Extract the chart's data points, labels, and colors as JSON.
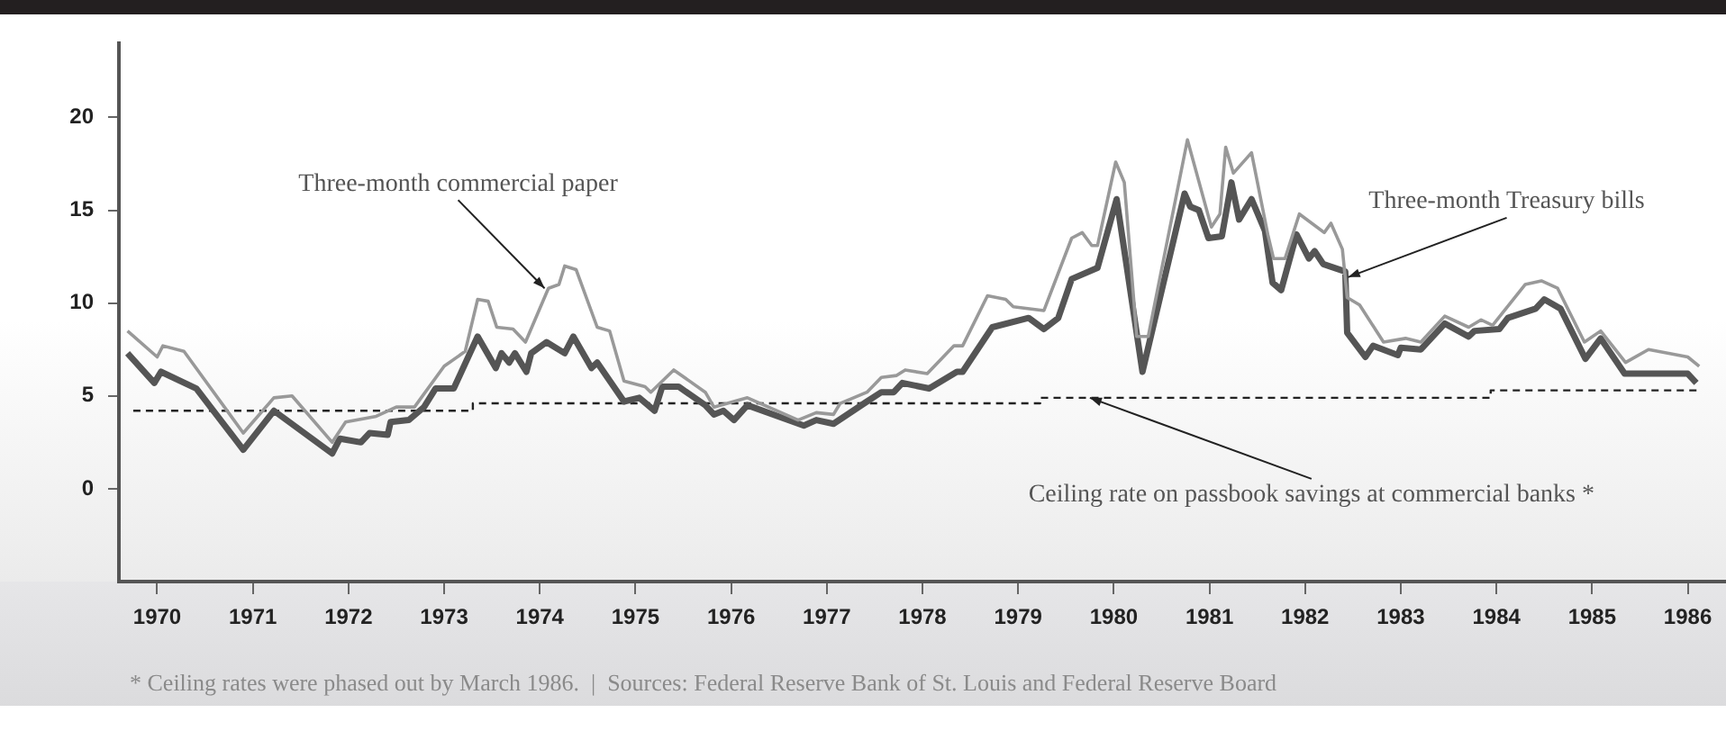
{
  "chart_data": {
    "type": "line",
    "xlim": [
      1969.6,
      1986.4
    ],
    "xticks": [
      1970,
      1971,
      1972,
      1973,
      1974,
      1975,
      1976,
      1977,
      1978,
      1979,
      1980,
      1981,
      1982,
      1983,
      1984,
      1985,
      1986
    ],
    "ylim": [
      -5,
      24
    ],
    "yticks": [
      0,
      5,
      10,
      15,
      20
    ],
    "grid": false,
    "legend": false,
    "marker": "none",
    "series": [
      {
        "color": "#999999",
        "line_style": "solid",
        "x": [
          1969.69,
          1970.0,
          1970.06,
          1970.28,
          1970.9,
          1971.22,
          1971.41,
          1971.83,
          1971.97,
          1972.29,
          1972.5,
          1972.69,
          1973.0,
          1973.22,
          1973.35,
          1973.46,
          1973.55,
          1973.72,
          1973.85,
          1974.09,
          1974.2,
          1974.26,
          1974.38,
          1974.6,
          1974.73,
          1974.88,
          1975.1,
          1975.16,
          1975.4,
          1975.73,
          1975.82,
          1976.17,
          1976.7,
          1976.89,
          1977.07,
          1977.14,
          1977.42,
          1977.57,
          1977.73,
          1977.82,
          1978.05,
          1978.33,
          1978.42,
          1978.68,
          1978.87,
          1978.95,
          1979.27,
          1979.56,
          1979.67,
          1979.77,
          1979.83,
          1980.02,
          1980.11,
          1980.24,
          1980.36,
          1980.77,
          1981.02,
          1981.11,
          1981.17,
          1981.25,
          1981.44,
          1981.61,
          1981.67,
          1981.79,
          1981.94,
          1982.2,
          1982.27,
          1982.39,
          1982.44,
          1982.57,
          1982.82,
          1983.05,
          1983.21,
          1983.46,
          1983.71,
          1983.84,
          1983.96,
          1984.3,
          1984.47,
          1984.64,
          1984.92,
          1985.09,
          1985.35,
          1985.59,
          1986.0,
          1986.12
        ],
        "values": [
          8.5,
          7.1,
          7.7,
          7.4,
          3.0,
          4.9,
          5.0,
          2.5,
          3.6,
          3.9,
          4.4,
          4.4,
          6.6,
          7.4,
          10.2,
          10.1,
          8.7,
          8.6,
          7.9,
          10.8,
          11.0,
          12.0,
          11.8,
          8.7,
          8.5,
          5.8,
          5.5,
          5.2,
          6.4,
          5.2,
          4.4,
          4.9,
          3.7,
          4.1,
          4.0,
          4.6,
          5.2,
          6.0,
          6.1,
          6.4,
          6.2,
          7.7,
          7.7,
          10.4,
          10.2,
          9.8,
          9.6,
          13.5,
          13.8,
          13.1,
          13.1,
          17.6,
          16.5,
          8.2,
          8.2,
          18.8,
          14.1,
          14.8,
          18.4,
          17.0,
          18.1,
          13.7,
          12.4,
          12.4,
          14.8,
          13.8,
          14.3,
          12.9,
          10.3,
          9.9,
          7.9,
          8.1,
          7.9,
          9.3,
          8.7,
          9.1,
          8.8,
          11.0,
          11.2,
          10.8,
          7.9,
          8.5,
          6.8,
          7.5,
          7.1,
          6.6
        ]
      },
      {
        "color": "#555555",
        "line_style": "solid",
        "x": [
          1969.69,
          1969.97,
          1970.04,
          1970.41,
          1970.9,
          1971.22,
          1971.83,
          1971.91,
          1972.13,
          1972.22,
          1972.41,
          1972.44,
          1972.63,
          1972.79,
          1972.91,
          1973.1,
          1973.35,
          1973.54,
          1973.6,
          1973.68,
          1973.74,
          1973.86,
          1973.91,
          1974.07,
          1974.26,
          1974.35,
          1974.54,
          1974.6,
          1974.88,
          1975.04,
          1975.2,
          1975.28,
          1975.45,
          1975.73,
          1975.82,
          1975.92,
          1976.03,
          1976.17,
          1976.76,
          1976.89,
          1977.07,
          1977.42,
          1977.57,
          1977.7,
          1977.79,
          1978.07,
          1978.36,
          1978.42,
          1978.73,
          1979.11,
          1979.27,
          1979.42,
          1979.56,
          1979.83,
          1980.03,
          1980.3,
          1980.74,
          1980.8,
          1980.89,
          1980.99,
          1981.13,
          1981.23,
          1981.31,
          1981.44,
          1981.58,
          1981.66,
          1981.75,
          1981.91,
          1982.04,
          1982.1,
          1982.19,
          1982.42,
          1982.44,
          1982.63,
          1982.71,
          1982.97,
          1983.0,
          1983.21,
          1983.46,
          1983.71,
          1983.77,
          1984.03,
          1984.12,
          1984.41,
          1984.5,
          1984.67,
          1984.93,
          1985.09,
          1985.34,
          1986.0,
          1986.09
        ],
        "values": [
          7.3,
          5.7,
          6.3,
          5.4,
          2.1,
          4.2,
          1.9,
          2.7,
          2.5,
          3.0,
          2.9,
          3.6,
          3.7,
          4.4,
          5.4,
          5.4,
          8.2,
          6.5,
          7.3,
          6.8,
          7.3,
          6.3,
          7.3,
          7.9,
          7.3,
          8.2,
          6.5,
          6.8,
          4.7,
          4.9,
          4.2,
          5.5,
          5.5,
          4.5,
          4.0,
          4.2,
          3.7,
          4.5,
          3.4,
          3.7,
          3.5,
          4.7,
          5.2,
          5.2,
          5.7,
          5.4,
          6.3,
          6.3,
          8.7,
          9.2,
          8.6,
          9.2,
          11.3,
          11.9,
          15.6,
          6.3,
          15.9,
          15.2,
          15.0,
          13.5,
          13.6,
          16.5,
          14.5,
          15.6,
          13.9,
          11.1,
          10.7,
          13.7,
          12.4,
          12.8,
          12.1,
          11.7,
          8.4,
          7.1,
          7.7,
          7.2,
          7.6,
          7.5,
          8.9,
          8.2,
          8.5,
          8.6,
          9.2,
          9.7,
          10.2,
          9.7,
          7.0,
          8.1,
          6.2,
          6.2,
          5.7
        ]
      },
      {
        "type": "step",
        "color": "#222222",
        "line_style": "dashed",
        "x": [
          1969.75,
          1973.3,
          1979.23,
          1983.94,
          1986.12
        ],
        "values": [
          4.2,
          4.6,
          4.9,
          5.3,
          5.3
        ]
      }
    ],
    "annotations": [
      {
        "text": "Three-month commercial paper",
        "x": 1974.05,
        "y": 10.8
      },
      {
        "text": "Three-month Treasury bills",
        "x": 1982.45,
        "y": 11.4
      },
      {
        "text": "Ceiling rate on passbook savings at commercial banks *",
        "x": 1979.75,
        "y": 4.9
      },
      "* Ceiling rates were phased out by March 1986.  |  Sources: Federal Reserve Bank of St. Louis and Federal Reserve Board"
    ]
  }
}
